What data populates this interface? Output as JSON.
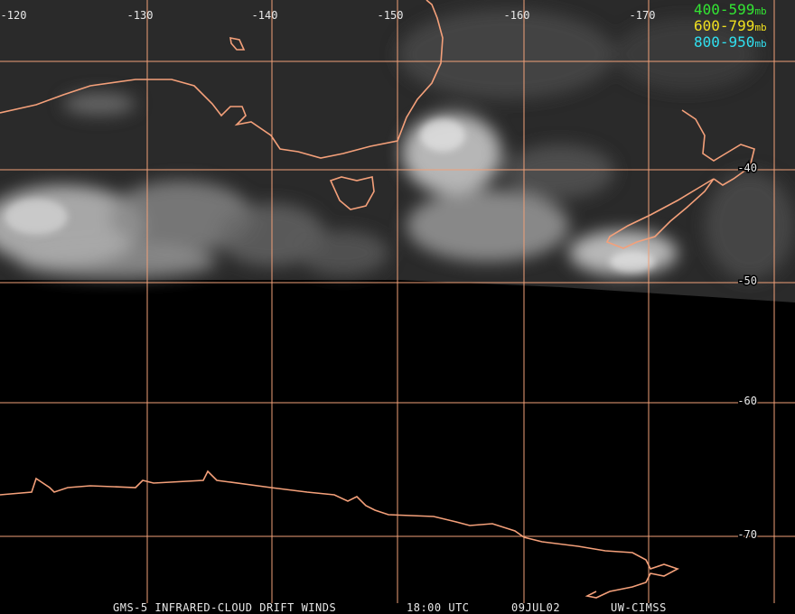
{
  "longitude_labels": [
    "-120",
    "-130",
    "-140",
    "-150",
    "-160",
    "-170"
  ],
  "latitude_labels": [
    "-40",
    "-50",
    "-60",
    "-70"
  ],
  "legend": [
    {
      "range": "400-599",
      "unit": "mb",
      "color": "#33e633"
    },
    {
      "range": "600-799",
      "unit": "mb",
      "color": "#f0e020"
    },
    {
      "range": "800-950",
      "unit": "mb",
      "color": "#30e0f0"
    }
  ],
  "footer": [
    "GMS-5 INFRARED-CLOUD DRIFT WINDS",
    "18:00 UTC",
    "09JUL02",
    "UW-CIMSS"
  ]
}
